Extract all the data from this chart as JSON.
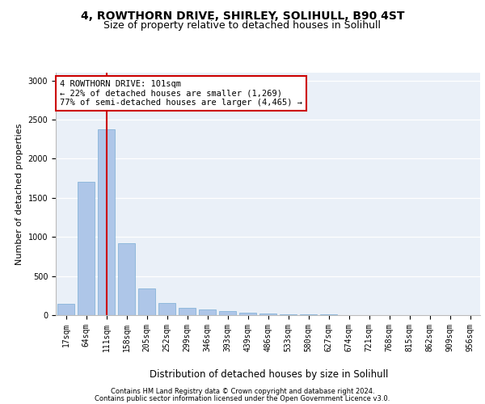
{
  "title1": "4, ROWTHORN DRIVE, SHIRLEY, SOLIHULL, B90 4ST",
  "title2": "Size of property relative to detached houses in Solihull",
  "xlabel": "Distribution of detached houses by size in Solihull",
  "ylabel": "Number of detached properties",
  "categories": [
    "17sqm",
    "64sqm",
    "111sqm",
    "158sqm",
    "205sqm",
    "252sqm",
    "299sqm",
    "346sqm",
    "393sqm",
    "439sqm",
    "486sqm",
    "533sqm",
    "580sqm",
    "627sqm",
    "674sqm",
    "721sqm",
    "768sqm",
    "815sqm",
    "862sqm",
    "909sqm",
    "956sqm"
  ],
  "values": [
    140,
    1700,
    2380,
    920,
    340,
    160,
    95,
    75,
    50,
    35,
    25,
    15,
    10,
    8,
    5,
    3,
    2,
    1,
    1,
    0,
    0
  ],
  "bar_color": "#aec6e8",
  "bar_edge_color": "#7aadd4",
  "vline_x": 2,
  "vline_color": "#cc0000",
  "annotation_text": "4 ROWTHORN DRIVE: 101sqm\n← 22% of detached houses are smaller (1,269)\n77% of semi-detached houses are larger (4,465) →",
  "annotation_box_color": "#cc0000",
  "annotation_fill_color": "#ffffff",
  "footnote1": "Contains HM Land Registry data © Crown copyright and database right 2024.",
  "footnote2": "Contains public sector information licensed under the Open Government Licence v3.0.",
  "ylim": [
    0,
    3100
  ],
  "plot_bg_color": "#eaf0f8",
  "title1_fontsize": 10,
  "title2_fontsize": 9,
  "ylabel_fontsize": 8,
  "xlabel_fontsize": 8.5,
  "tick_fontsize": 7,
  "annot_fontsize": 7.5,
  "footnote_fontsize": 6
}
